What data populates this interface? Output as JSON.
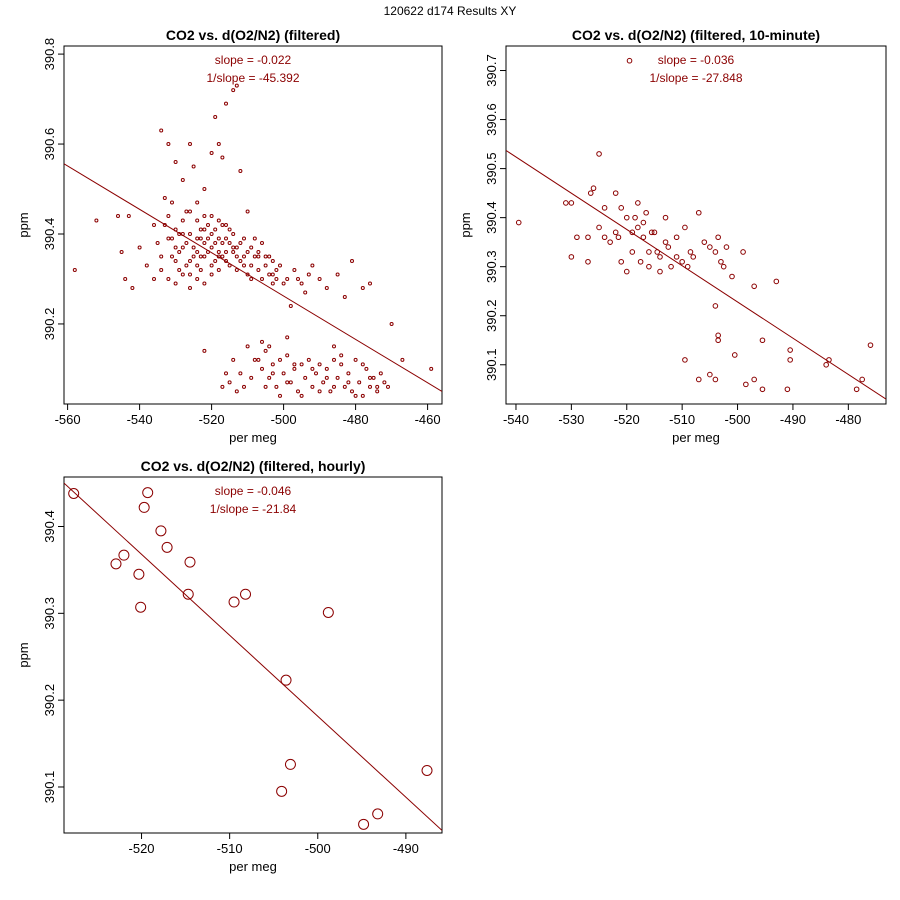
{
  "page_title": "120622   d174   Results XY",
  "colors": {
    "series": "#8b0000",
    "axis": "#000000"
  },
  "chart_data": [
    {
      "type": "scatter",
      "title": "CO2 vs. d(O2/N2) (filtered)",
      "xlabel": "per meg",
      "ylabel": "ppm",
      "xlim": [
        -561,
        -456
      ],
      "ylim": [
        390.022,
        390.818
      ],
      "xticks": [
        -560,
        -540,
        -520,
        -500,
        -480,
        -460
      ],
      "yticks": [
        390.2,
        390.4,
        390.6,
        390.8
      ],
      "slope_label": "slope = -0.022",
      "inv_slope_label": "1/slope = -45.392",
      "fit_line": {
        "x": [
          -561,
          -456
        ],
        "y": [
          390.556,
          390.05
        ]
      },
      "marker_radius": 1.5,
      "points": [
        [
          -558,
          390.32
        ],
        [
          -552,
          390.43
        ],
        [
          -546,
          390.44
        ],
        [
          -545,
          390.36
        ],
        [
          -544,
          390.3
        ],
        [
          -543,
          390.44
        ],
        [
          -542,
          390.28
        ],
        [
          -540,
          390.37
        ],
        [
          -538,
          390.33
        ],
        [
          -536,
          390.42
        ],
        [
          -534,
          390.63
        ],
        [
          -533,
          390.48
        ],
        [
          -532,
          390.6
        ],
        [
          -531,
          390.47
        ],
        [
          -530,
          390.56
        ],
        [
          -529,
          390.4
        ],
        [
          -528,
          390.52
        ],
        [
          -526,
          390.6
        ],
        [
          -525,
          390.55
        ],
        [
          -524,
          390.47
        ],
        [
          -523,
          390.35
        ],
        [
          -522,
          390.5
        ],
        [
          -520,
          390.58
        ],
        [
          -519,
          390.66
        ],
        [
          -518,
          390.6
        ],
        [
          -517,
          390.57
        ],
        [
          -516,
          390.69
        ],
        [
          -514,
          390.72
        ],
        [
          -513,
          390.73
        ],
        [
          -512,
          390.54
        ],
        [
          -510,
          390.45
        ],
        [
          -509,
          390.3
        ],
        [
          -507,
          390.35
        ],
        [
          -506,
          390.38
        ],
        [
          -504,
          390.35
        ],
        [
          -503,
          390.29
        ],
        [
          -502,
          390.3
        ],
        [
          -500,
          390.29
        ],
        [
          -498,
          390.24
        ],
        [
          -496,
          390.3
        ],
        [
          -494,
          390.27
        ],
        [
          -492,
          390.33
        ],
        [
          -490,
          390.3
        ],
        [
          -488,
          390.28
        ],
        [
          -485,
          390.31
        ],
        [
          -483,
          390.26
        ],
        [
          -481,
          390.34
        ],
        [
          -478,
          390.28
        ],
        [
          -476,
          390.29
        ],
        [
          -470,
          390.2
        ],
        [
          -535,
          390.38
        ],
        [
          -533,
          390.42
        ],
        [
          -531,
          390.35
        ],
        [
          -529,
          390.32
        ],
        [
          -527,
          390.45
        ],
        [
          -526,
          390.4
        ],
        [
          -525,
          390.37
        ],
        [
          -524,
          390.43
        ],
        [
          -523,
          390.39
        ],
        [
          -522,
          390.41
        ],
        [
          -521,
          390.36
        ],
        [
          -520,
          390.44
        ],
        [
          -519,
          390.38
        ],
        [
          -518,
          390.35
        ],
        [
          -517,
          390.42
        ],
        [
          -516,
          390.39
        ],
        [
          -515,
          390.33
        ],
        [
          -514,
          390.4
        ],
        [
          -513,
          390.37
        ],
        [
          -512,
          390.34
        ],
        [
          -511,
          390.39
        ],
        [
          -510,
          390.36
        ],
        [
          -509,
          390.33
        ],
        [
          -508,
          390.35
        ],
        [
          -507,
          390.32
        ],
        [
          -506,
          390.3
        ],
        [
          -505,
          390.33
        ],
        [
          -504,
          390.31
        ],
        [
          -503,
          390.34
        ],
        [
          -502,
          390.32
        ],
        [
          -530,
          390.34
        ],
        [
          -528,
          390.37
        ],
        [
          -527,
          390.33
        ],
        [
          -526,
          390.31
        ],
        [
          -524,
          390.36
        ],
        [
          -523,
          390.32
        ],
        [
          -522,
          390.38
        ],
        [
          -521,
          390.42
        ],
        [
          -520,
          390.37
        ],
        [
          -519,
          390.41
        ],
        [
          -518,
          390.43
        ],
        [
          -517,
          390.38
        ],
        [
          -516,
          390.36
        ],
        [
          -515,
          390.41
        ],
        [
          -514,
          390.37
        ],
        [
          -513,
          390.32
        ],
        [
          -512,
          390.38
        ],
        [
          -511,
          390.35
        ],
        [
          -510,
          390.31
        ],
        [
          -508,
          390.39
        ],
        [
          -532,
          390.44
        ],
        [
          -530,
          390.41
        ],
        [
          -528,
          390.43
        ],
        [
          -526,
          390.45
        ],
        [
          -524,
          390.39
        ],
        [
          -522,
          390.44
        ],
        [
          -520,
          390.4
        ],
        [
          -518,
          390.39
        ],
        [
          -516,
          390.42
        ],
        [
          -514,
          390.36
        ],
        [
          -534,
          390.35
        ],
        [
          -532,
          390.39
        ],
        [
          -530,
          390.37
        ],
        [
          -528,
          390.4
        ],
        [
          -526,
          390.34
        ],
        [
          -524,
          390.33
        ],
        [
          -522,
          390.35
        ],
        [
          -520,
          390.33
        ],
        [
          -518,
          390.36
        ],
        [
          -516,
          390.34
        ],
        [
          -536,
          390.3
        ],
        [
          -534,
          390.32
        ],
        [
          -532,
          390.3
        ],
        [
          -530,
          390.29
        ],
        [
          -528,
          390.31
        ],
        [
          -526,
          390.28
        ],
        [
          -524,
          390.3
        ],
        [
          -522,
          390.29
        ],
        [
          -520,
          390.31
        ],
        [
          -518,
          390.32
        ],
        [
          -531,
          390.39
        ],
        [
          -529,
          390.36
        ],
        [
          -527,
          390.38
        ],
        [
          -525,
          390.35
        ],
        [
          -523,
          390.41
        ],
        [
          -521,
          390.39
        ],
        [
          -519,
          390.34
        ],
        [
          -517,
          390.35
        ],
        [
          -515,
          390.38
        ],
        [
          -513,
          390.35
        ],
        [
          -511,
          390.33
        ],
        [
          -509,
          390.37
        ],
        [
          -507,
          390.36
        ],
        [
          -505,
          390.35
        ],
        [
          -503,
          390.31
        ],
        [
          -501,
          390.33
        ],
        [
          -499,
          390.3
        ],
        [
          -497,
          390.32
        ],
        [
          -495,
          390.29
        ],
        [
          -493,
          390.31
        ],
        [
          -510,
          390.15
        ],
        [
          -508,
          390.12
        ],
        [
          -506,
          390.1
        ],
        [
          -505,
          390.14
        ],
        [
          -504,
          390.08
        ],
        [
          -503,
          390.11
        ],
        [
          -502,
          390.06
        ],
        [
          -501,
          390.12
        ],
        [
          -500,
          390.09
        ],
        [
          -499,
          390.13
        ],
        [
          -498,
          390.07
        ],
        [
          -497,
          390.1
        ],
        [
          -496,
          390.05
        ],
        [
          -495,
          390.11
        ],
        [
          -494,
          390.08
        ],
        [
          -493,
          390.12
        ],
        [
          -492,
          390.06
        ],
        [
          -491,
          390.09
        ],
        [
          -490,
          390.11
        ],
        [
          -489,
          390.07
        ],
        [
          -488,
          390.1
        ],
        [
          -487,
          390.05
        ],
        [
          -486,
          390.12
        ],
        [
          -485,
          390.08
        ],
        [
          -484,
          390.11
        ],
        [
          -483,
          390.06
        ],
        [
          -482,
          390.09
        ],
        [
          -481,
          390.05
        ],
        [
          -480,
          390.12
        ],
        [
          -479,
          390.07
        ],
        [
          -478,
          390.04
        ],
        [
          -477,
          390.1
        ],
        [
          -476,
          390.06
        ],
        [
          -475,
          390.08
        ],
        [
          -474,
          390.05
        ],
        [
          -473,
          390.09
        ],
        [
          -472,
          390.07
        ],
        [
          -471,
          390.06
        ],
        [
          -467,
          390.12
        ],
        [
          -459,
          390.1
        ],
        [
          -512,
          390.09
        ],
        [
          -511,
          390.06
        ],
        [
          -509,
          390.08
        ],
        [
          -507,
          390.12
        ],
        [
          -505,
          390.06
        ],
        [
          -503,
          390.09
        ],
        [
          -501,
          390.04
        ],
        [
          -499,
          390.07
        ],
        [
          -497,
          390.11
        ],
        [
          -495,
          390.04
        ],
        [
          -492,
          390.1
        ],
        [
          -490,
          390.05
        ],
        [
          -488,
          390.08
        ],
        [
          -486,
          390.06
        ],
        [
          -484,
          390.13
        ],
        [
          -482,
          390.07
        ],
        [
          -480,
          390.04
        ],
        [
          -478,
          390.11
        ],
        [
          -476,
          390.08
        ],
        [
          -474,
          390.06
        ],
        [
          -515,
          390.07
        ],
        [
          -514,
          390.12
        ],
        [
          -513,
          390.05
        ],
        [
          -516,
          390.09
        ],
        [
          -517,
          390.06
        ],
        [
          -522,
          390.14
        ],
        [
          -506,
          390.16
        ],
        [
          -504,
          390.15
        ],
        [
          -499,
          390.17
        ],
        [
          -486,
          390.15
        ]
      ]
    },
    {
      "type": "scatter",
      "title": "CO2 vs. d(O2/N2) (filtered, 10-minute)",
      "xlabel": "per meg",
      "ylabel": "ppm",
      "xlim": [
        -541.8,
        -473.2
      ],
      "ylim": [
        390.02,
        390.75
      ],
      "xticks": [
        -540,
        -530,
        -520,
        -510,
        -500,
        -490,
        -480
      ],
      "yticks": [
        390.1,
        390.2,
        390.3,
        390.4,
        390.5,
        390.6,
        390.7
      ],
      "slope_label": "slope = -0.036",
      "inv_slope_label": "1/slope = -27.848",
      "fit_line": {
        "x": [
          -541.8,
          -473.2
        ],
        "y": [
          390.537,
          390.03
        ]
      },
      "marker_radius": 2.3,
      "points": [
        [
          -539.5,
          390.39
        ],
        [
          -531,
          390.43
        ],
        [
          -530,
          390.43
        ],
        [
          -530,
          390.32
        ],
        [
          -529,
          390.36
        ],
        [
          -527,
          390.31
        ],
        [
          -527,
          390.36
        ],
        [
          -526.5,
          390.45
        ],
        [
          -526,
          390.46
        ],
        [
          -525,
          390.53
        ],
        [
          -525,
          390.38
        ],
        [
          -524,
          390.42
        ],
        [
          -524,
          390.36
        ],
        [
          -523,
          390.35
        ],
        [
          -522,
          390.37
        ],
        [
          -522,
          390.45
        ],
        [
          -521.5,
          390.36
        ],
        [
          -521,
          390.42
        ],
        [
          -521,
          390.31
        ],
        [
          -520,
          390.4
        ],
        [
          -520,
          390.29
        ],
        [
          -519.5,
          390.72
        ],
        [
          -519,
          390.37
        ],
        [
          -519,
          390.33
        ],
        [
          -518.5,
          390.4
        ],
        [
          -518,
          390.38
        ],
        [
          -518,
          390.43
        ],
        [
          -517.5,
          390.31
        ],
        [
          -517,
          390.36
        ],
        [
          -517,
          390.39
        ],
        [
          -516.5,
          390.41
        ],
        [
          -516,
          390.33
        ],
        [
          -516,
          390.3
        ],
        [
          -515.5,
          390.37
        ],
        [
          -515,
          390.37
        ],
        [
          -514.5,
          390.33
        ],
        [
          -514,
          390.32
        ],
        [
          -514,
          390.29
        ],
        [
          -513,
          390.35
        ],
        [
          -513,
          390.4
        ],
        [
          -512.5,
          390.34
        ],
        [
          -512,
          390.3
        ],
        [
          -511,
          390.36
        ],
        [
          -511,
          390.32
        ],
        [
          -510,
          390.31
        ],
        [
          -509.5,
          390.38
        ],
        [
          -509,
          390.3
        ],
        [
          -508.5,
          390.33
        ],
        [
          -508,
          390.32
        ],
        [
          -507,
          390.41
        ],
        [
          -506,
          390.35
        ],
        [
          -505,
          390.34
        ],
        [
          -504,
          390.33
        ],
        [
          -503.5,
          390.36
        ],
        [
          -503,
          390.31
        ],
        [
          -502.5,
          390.3
        ],
        [
          -502,
          390.34
        ],
        [
          -501,
          390.28
        ],
        [
          -499,
          390.33
        ],
        [
          -497,
          390.26
        ],
        [
          -493,
          390.27
        ],
        [
          -504,
          390.22
        ],
        [
          -503.5,
          390.16
        ],
        [
          -503.5,
          390.15
        ],
        [
          -505,
          390.08
        ],
        [
          -504,
          390.07
        ],
        [
          -509.5,
          390.11
        ],
        [
          -507,
          390.07
        ],
        [
          -500.5,
          390.12
        ],
        [
          -498.5,
          390.06
        ],
        [
          -497,
          390.07
        ],
        [
          -495.5,
          390.15
        ],
        [
          -495.5,
          390.05
        ],
        [
          -491,
          390.05
        ],
        [
          -490.5,
          390.13
        ],
        [
          -490.5,
          390.11
        ],
        [
          -484,
          390.1
        ],
        [
          -483.5,
          390.11
        ],
        [
          -478.5,
          390.05
        ],
        [
          -477.5,
          390.07
        ],
        [
          -476,
          390.14
        ]
      ]
    },
    {
      "type": "scatter",
      "title": "CO2 vs. d(O2/N2) (filtered, hourly)",
      "xlabel": "per meg",
      "ylabel": "ppm",
      "xlim": [
        -528.8,
        -485.9
      ],
      "ylim": [
        390.047,
        390.457
      ],
      "xticks": [
        -520,
        -510,
        -500,
        -490
      ],
      "yticks": [
        390.1,
        390.2,
        390.3,
        390.4
      ],
      "slope_label": "slope = -0.046",
      "inv_slope_label": "1/slope = -21.84",
      "fit_line": {
        "x": [
          -528.8,
          -485.9
        ],
        "y": [
          390.45,
          390.05
        ]
      },
      "marker_radius": 5,
      "points": [
        [
          -527.7,
          390.438
        ],
        [
          -522.9,
          390.357
        ],
        [
          -522.0,
          390.367
        ],
        [
          -520.3,
          390.345
        ],
        [
          -520.1,
          390.307
        ],
        [
          -519.7,
          390.422
        ],
        [
          -519.3,
          390.439
        ],
        [
          -517.8,
          390.395
        ],
        [
          -517.1,
          390.376
        ],
        [
          -514.7,
          390.322
        ],
        [
          -514.5,
          390.359
        ],
        [
          -509.5,
          390.313
        ],
        [
          -508.2,
          390.322
        ],
        [
          -503.6,
          390.223
        ],
        [
          -498.8,
          390.301
        ],
        [
          -504.1,
          390.095
        ],
        [
          -503.1,
          390.126
        ],
        [
          -494.8,
          390.057
        ],
        [
          -493.2,
          390.069
        ],
        [
          -487.6,
          390.119
        ]
      ]
    }
  ]
}
